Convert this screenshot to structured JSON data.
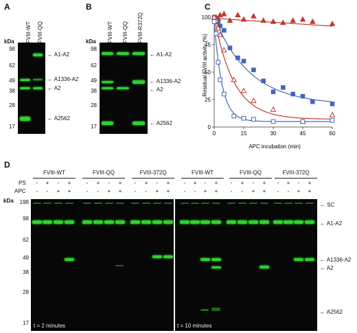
{
  "panelA": {
    "label": "A",
    "kda": "kDa",
    "lanes": [
      "FVIII-WT",
      "FVIII-QQ"
    ],
    "markers": [
      "98",
      "62",
      "49",
      "38",
      "28",
      "17"
    ],
    "bands": [
      "A1-A2",
      "A1336-A2",
      "A2",
      "A2562"
    ]
  },
  "panelB": {
    "label": "B",
    "kda": "kDa",
    "lanes": [
      "FVIII-WT",
      "FVIII-QQ",
      "FVIII-R372Q"
    ],
    "markers": [
      "98",
      "62",
      "49",
      "38",
      "28",
      "17"
    ],
    "bands": [
      "A1-A2",
      "A1336-A2",
      "A2",
      "A2562"
    ]
  },
  "panelC": {
    "label": "C",
    "chart_data": {
      "type": "scatter",
      "xlabel": "APC incubation (min)",
      "ylabel": "Residual FVIII activity (%)",
      "xlim": [
        0,
        60
      ],
      "ylim": [
        0,
        100
      ],
      "xticks": [
        "0",
        "15",
        "30",
        "45",
        "60"
      ],
      "yticks": [
        "0",
        "25",
        "50",
        "75",
        "100"
      ],
      "series": [
        {
          "marker": "filled-triangle",
          "color": "#c0392b",
          "x": [
            0,
            1,
            2,
            3,
            5,
            8,
            12,
            15,
            20,
            25,
            30,
            35,
            40,
            45,
            50,
            60
          ],
          "y": [
            100,
            100,
            99,
            102,
            103,
            97,
            102,
            98,
            101,
            97,
            96,
            95,
            97,
            98,
            96,
            94
          ],
          "fit": {
            "model": "linear",
            "a": 99,
            "b": -0.12
          }
        },
        {
          "marker": "filled-square",
          "color": "#4466b8",
          "x": [
            0,
            1,
            2,
            3,
            5,
            8,
            12,
            15,
            20,
            25,
            30,
            35,
            40,
            45,
            50,
            60
          ],
          "y": [
            100,
            97,
            96,
            92,
            88,
            72,
            63,
            60,
            52,
            42,
            32,
            36,
            30,
            28,
            23,
            21
          ],
          "fit": {
            "model": "exp",
            "plateau": 20,
            "span": 80,
            "k": 0.055
          }
        },
        {
          "marker": "open-triangle",
          "color": "#c0392b",
          "x": [
            0,
            1,
            2,
            3,
            5,
            10,
            15,
            20,
            30,
            45,
            60
          ],
          "y": [
            100,
            97,
            90,
            84,
            70,
            43,
            33,
            24,
            16,
            5,
            11
          ],
          "fit": {
            "model": "exp",
            "plateau": 7,
            "span": 93,
            "k": 0.1
          }
        },
        {
          "marker": "open-square",
          "color": "#4466b8",
          "x": [
            0,
            1,
            2,
            3,
            5,
            10,
            15,
            20,
            30,
            45,
            60
          ],
          "y": [
            96,
            85,
            59,
            43,
            30,
            10,
            8,
            7,
            5,
            5,
            6
          ],
          "fit": {
            "model": "exp",
            "plateau": 5,
            "span": 91,
            "k": 0.25
          }
        }
      ]
    }
  },
  "panelD": {
    "label": "D",
    "kda": "kDa",
    "row_ps": "PS",
    "row_apc": "APC",
    "groups_left": [
      "FVIII-WT",
      "FVIII-QQ",
      "FVIII-372Q"
    ],
    "groups_right": [
      "FVIII-WT",
      "FVIII-QQ",
      "FVIII-372Q"
    ],
    "ps_pattern": [
      "-",
      "+",
      "-",
      "+"
    ],
    "apc_pattern": [
      "-",
      "-",
      "+",
      "+"
    ],
    "markers": [
      "198",
      "98",
      "62",
      "49",
      "38",
      "28",
      "17"
    ],
    "bands": [
      "SC",
      "A1-A2",
      "A1336-A2",
      "A2",
      "A2562"
    ],
    "time_left": "t = 2 minutes",
    "time_right": "t = 10 minutes"
  }
}
